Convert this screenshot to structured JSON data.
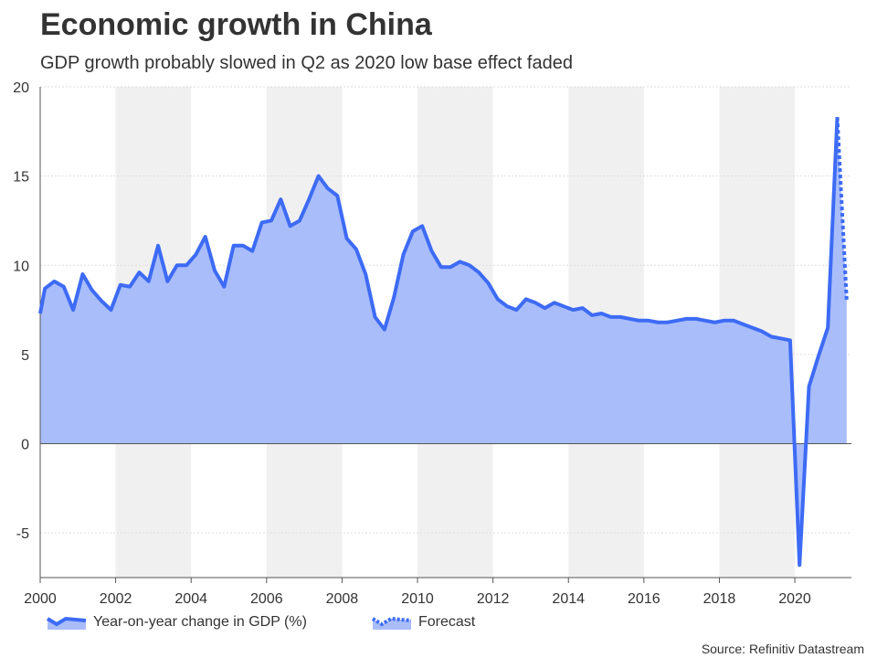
{
  "title": "Economic growth in China",
  "subtitle": "GDP growth probably slowed in Q2 as 2020 low base effect faded",
  "source": "Source: Refinitiv Datastream",
  "legend": {
    "actual": "Year-on-year change in GDP (%)",
    "forecast": "Forecast"
  },
  "colors": {
    "line": "#3d6bf5",
    "area": "#a9bdfb",
    "band": "#f0f0f0",
    "grid": "#dddddd",
    "axis": "#555555"
  },
  "chart_data": {
    "type": "area",
    "x_unit": "year",
    "xlim": [
      2000,
      2021.5
    ],
    "ylim": [
      -7.5,
      20
    ],
    "grid": true,
    "legend_position": "bottom-left",
    "x_ticks": [
      2000,
      2002,
      2004,
      2006,
      2008,
      2010,
      2012,
      2014,
      2016,
      2018,
      2020
    ],
    "y_ticks": [
      -5,
      0,
      5,
      10,
      15,
      20
    ],
    "x_tick_labels": [
      "2000",
      "2002",
      "2004",
      "2006",
      "2008",
      "2010",
      "2012",
      "2014",
      "2016",
      "2018",
      "2020"
    ],
    "y_tick_labels": [
      "-5",
      "0",
      "5",
      "10",
      "15",
      "20"
    ],
    "shaded_periods": [
      [
        2002,
        2004
      ],
      [
        2006,
        2008
      ],
      [
        2010,
        2012
      ],
      [
        2014,
        2016
      ],
      [
        2018,
        2020
      ]
    ],
    "series": [
      {
        "name": "Year-on-year change in GDP (%)",
        "style": "solid",
        "x": [
          2000.0,
          2000.125,
          2000.375,
          2000.625,
          2000.875,
          2001.125,
          2001.375,
          2001.625,
          2001.875,
          2002.125,
          2002.375,
          2002.625,
          2002.875,
          2003.125,
          2003.375,
          2003.625,
          2003.875,
          2004.125,
          2004.375,
          2004.625,
          2004.875,
          2005.125,
          2005.375,
          2005.625,
          2005.875,
          2006.125,
          2006.375,
          2006.625,
          2006.875,
          2007.125,
          2007.375,
          2007.625,
          2007.875,
          2008.125,
          2008.375,
          2008.625,
          2008.875,
          2009.125,
          2009.375,
          2009.625,
          2009.875,
          2010.125,
          2010.375,
          2010.625,
          2010.875,
          2011.125,
          2011.375,
          2011.625,
          2011.875,
          2012.125,
          2012.375,
          2012.625,
          2012.875,
          2013.125,
          2013.375,
          2013.625,
          2013.875,
          2014.125,
          2014.375,
          2014.625,
          2014.875,
          2015.125,
          2015.375,
          2015.625,
          2015.875,
          2016.125,
          2016.375,
          2016.625,
          2016.875,
          2017.125,
          2017.375,
          2017.625,
          2017.875,
          2018.125,
          2018.375,
          2018.625,
          2018.875,
          2019.125,
          2019.375,
          2019.625,
          2019.875,
          2020.125,
          2020.375,
          2020.625,
          2020.875,
          2021.125
        ],
        "values": [
          7.3,
          8.7,
          9.1,
          8.8,
          7.5,
          9.5,
          8.6,
          8.0,
          7.5,
          8.9,
          8.8,
          9.6,
          9.1,
          11.1,
          9.1,
          10.0,
          10.0,
          10.6,
          11.6,
          9.7,
          8.8,
          11.1,
          11.1,
          10.8,
          12.4,
          12.5,
          13.7,
          12.2,
          12.5,
          13.7,
          15.0,
          14.3,
          13.9,
          11.5,
          10.9,
          9.5,
          7.1,
          6.4,
          8.2,
          10.6,
          11.9,
          12.2,
          10.8,
          9.9,
          9.9,
          10.2,
          10.0,
          9.6,
          9.0,
          8.1,
          7.7,
          7.5,
          8.1,
          7.9,
          7.6,
          7.9,
          7.7,
          7.5,
          7.6,
          7.2,
          7.3,
          7.1,
          7.1,
          7.0,
          6.9,
          6.9,
          6.8,
          6.8,
          6.9,
          7.0,
          7.0,
          6.9,
          6.8,
          6.9,
          6.9,
          6.7,
          6.5,
          6.3,
          6.0,
          5.9,
          5.8,
          -6.8,
          3.2,
          4.9,
          6.5,
          18.3
        ]
      },
      {
        "name": "Forecast",
        "style": "dotted",
        "x": [
          2021.125,
          2021.375
        ],
        "values": [
          18.3,
          8.0
        ]
      }
    ]
  }
}
